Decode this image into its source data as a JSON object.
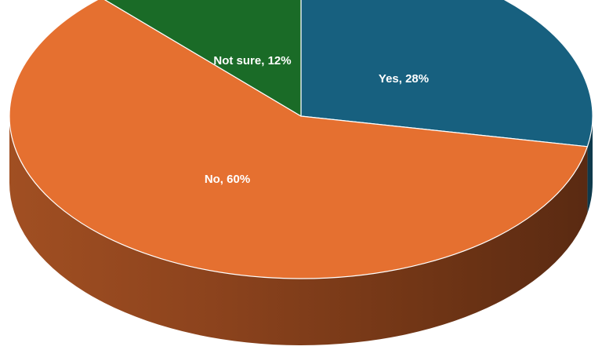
{
  "chart_data": {
    "type": "pie",
    "style": "3d",
    "title": "",
    "slices": [
      {
        "name": "Yes",
        "value": 28,
        "label": "Yes, 28%",
        "color": "#17607f"
      },
      {
        "name": "No",
        "value": 60,
        "label": "No, 60%",
        "color": "#e57030"
      },
      {
        "name": "Not sure",
        "value": 12,
        "label": "Not sure, 12%",
        "color": "#1a6b27"
      }
    ],
    "start_angle_deg": -90,
    "direction": "clockwise",
    "legend": "none"
  }
}
